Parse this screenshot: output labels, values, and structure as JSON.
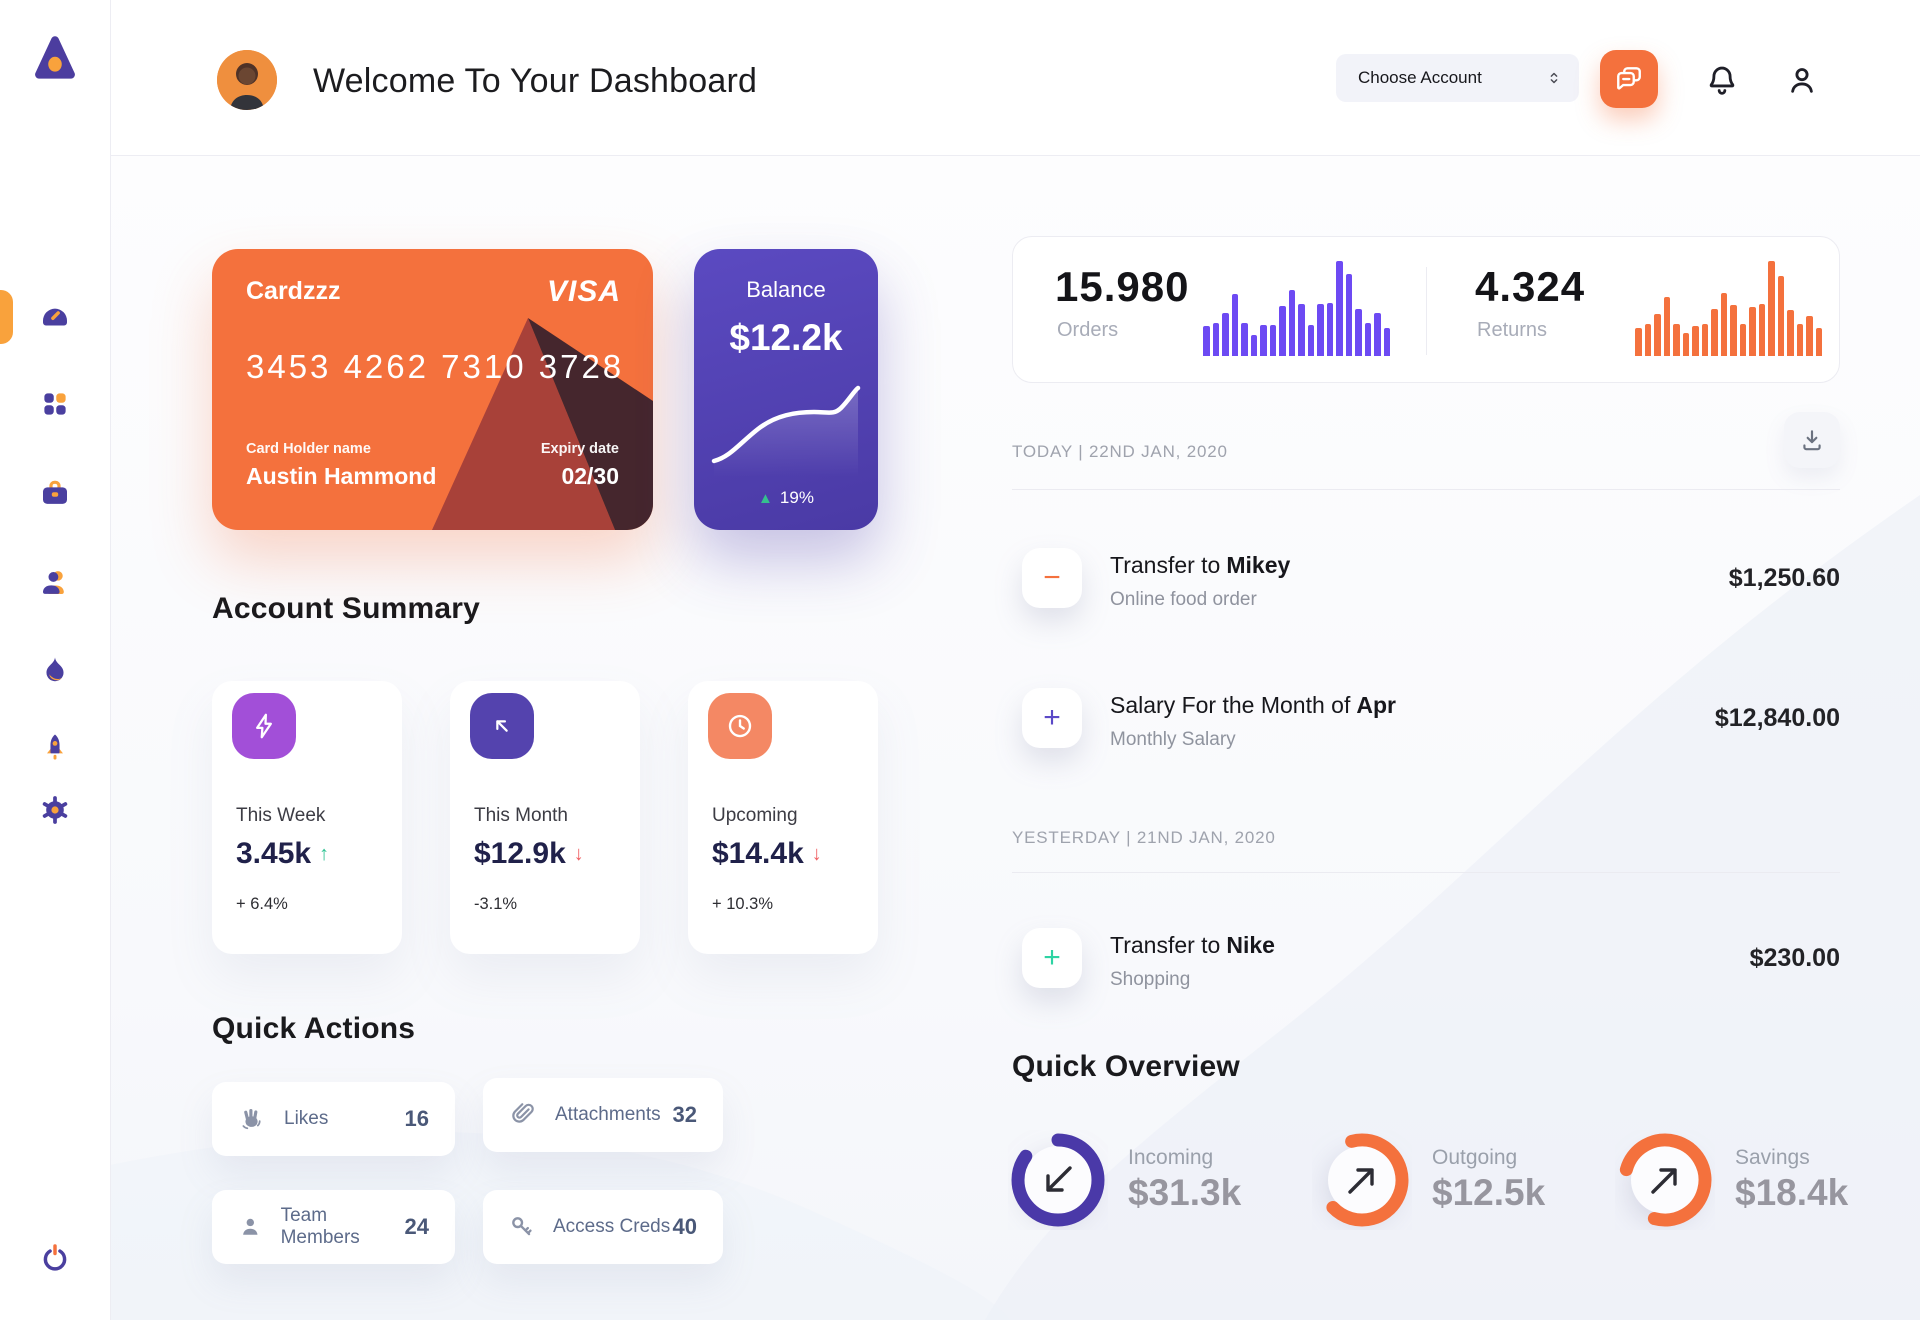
{
  "app": {
    "accent_orange": "#f4713d",
    "accent_purple": "#4a3aa6",
    "nav_purple": "#4a3f9f",
    "nav_orange": "#f9a23c"
  },
  "sidebar": {
    "logo_icon": "triangle-logo",
    "items": [
      {
        "icon": "speedometer-icon",
        "name": "dashboard",
        "active": true
      },
      {
        "icon": "grid-dots-icon",
        "name": "apps",
        "active": false
      },
      {
        "icon": "briefcase-icon",
        "name": "work",
        "active": false
      },
      {
        "icon": "user-icon",
        "name": "team",
        "active": false
      },
      {
        "icon": "flame-icon",
        "name": "activity",
        "active": false
      },
      {
        "icon": "rocket-icon",
        "name": "launch",
        "active": false
      },
      {
        "icon": "gear-icon",
        "name": "settings",
        "active": false
      }
    ],
    "power_icon": "power-icon"
  },
  "header": {
    "title": "Welcome To Your Dashboard",
    "account_select": {
      "label": "Choose Account",
      "icon": "chevron-up-down-icon"
    },
    "chat_button_icon": "chat-icon",
    "bell_icon": "bell-icon",
    "profile_icon": "user-outline-icon"
  },
  "bank_card": {
    "name": "Cardzzz",
    "brand": "VISA",
    "number": "3453 4262 7310 3728",
    "holder_label": "Card Holder name",
    "holder_name": "Austin Hammond",
    "expiry_label": "Expiry date",
    "expiry": "02/30"
  },
  "balance_card": {
    "label": "Balance",
    "value": "$12.2k",
    "change": "19%",
    "trend": "up"
  },
  "stats": {
    "orders": {
      "value": "15.980",
      "label": "Orders",
      "color": "#6d4af3",
      "bars": [
        32,
        35,
        45,
        65,
        35,
        22,
        33,
        33,
        53,
        70,
        55,
        33,
        55,
        56,
        100,
        86,
        50,
        35,
        45,
        30
      ]
    },
    "returns": {
      "value": "4.324",
      "label": "Returns",
      "color": "#f4713d",
      "bars": [
        30,
        34,
        44,
        62,
        34,
        24,
        32,
        34,
        50,
        66,
        54,
        34,
        52,
        55,
        100,
        84,
        48,
        34,
        42,
        30
      ]
    }
  },
  "account_summary": {
    "heading": "Account Summary",
    "cards": [
      {
        "icon": "lightning-icon",
        "icon_bg": "#a24fd8",
        "label": "This Week",
        "value": "3.45k",
        "trend": "up",
        "percent": "+ 6.4%"
      },
      {
        "icon": "arrow-up-left-icon",
        "icon_bg": "#5443ae",
        "label": "This Month",
        "value": "$12.9k",
        "trend": "down",
        "percent": "-3.1%"
      },
      {
        "icon": "clock-icon",
        "icon_bg": "#f48864",
        "label": "Upcoming",
        "value": "$14.4k",
        "trend": "down",
        "percent": "+ 10.3%"
      }
    ]
  },
  "quick_actions": {
    "heading": "Quick Actions",
    "items": [
      {
        "icon": "waving-hand-icon",
        "label": "Likes",
        "count": "16"
      },
      {
        "icon": "paperclip-icon",
        "label": "Attachments",
        "count": "32"
      },
      {
        "icon": "member-icon",
        "label": "Team Members",
        "count": "24"
      },
      {
        "icon": "key-icon",
        "label": "Access Creds",
        "count": "40"
      }
    ]
  },
  "transactions": {
    "download_icon": "download-icon",
    "groups": [
      {
        "date": "TODAY | 22ND JAN, 2020",
        "rows": [
          {
            "sign": "minus",
            "icon_color": "#f4713d",
            "title": "Transfer to",
            "title_bold": "Mikey",
            "subtitle": "Online food order",
            "amount": "$1,250.60"
          },
          {
            "sign": "plus",
            "icon_color": "#5b49c7",
            "title": "Salary For the Month of",
            "title_bold": "Apr",
            "subtitle": "Monthly Salary",
            "amount": "$12,840.00"
          }
        ]
      },
      {
        "date": "YESTERDAY | 21ND JAN, 2020",
        "rows": [
          {
            "sign": "plus",
            "icon_color": "#2ed3a3",
            "title": "Transfer to",
            "title_bold": "Nike",
            "subtitle": "Shopping",
            "amount": "$230.00"
          }
        ]
      }
    ]
  },
  "quick_overview": {
    "heading": "Quick Overview",
    "items": [
      {
        "label": "Incoming",
        "value": "$31.3k",
        "ring_color": "#4a39a8",
        "fill": 0.85,
        "arrow": "down-left"
      },
      {
        "label": "Outgoing",
        "value": "$12.5k",
        "ring_color": "#f4713d",
        "fill": 0.67,
        "arrow": "up-right"
      },
      {
        "label": "Savings",
        "value": "$18.4k",
        "ring_color": "#f4713d",
        "fill": 0.75,
        "arrow": "up-right"
      }
    ]
  }
}
